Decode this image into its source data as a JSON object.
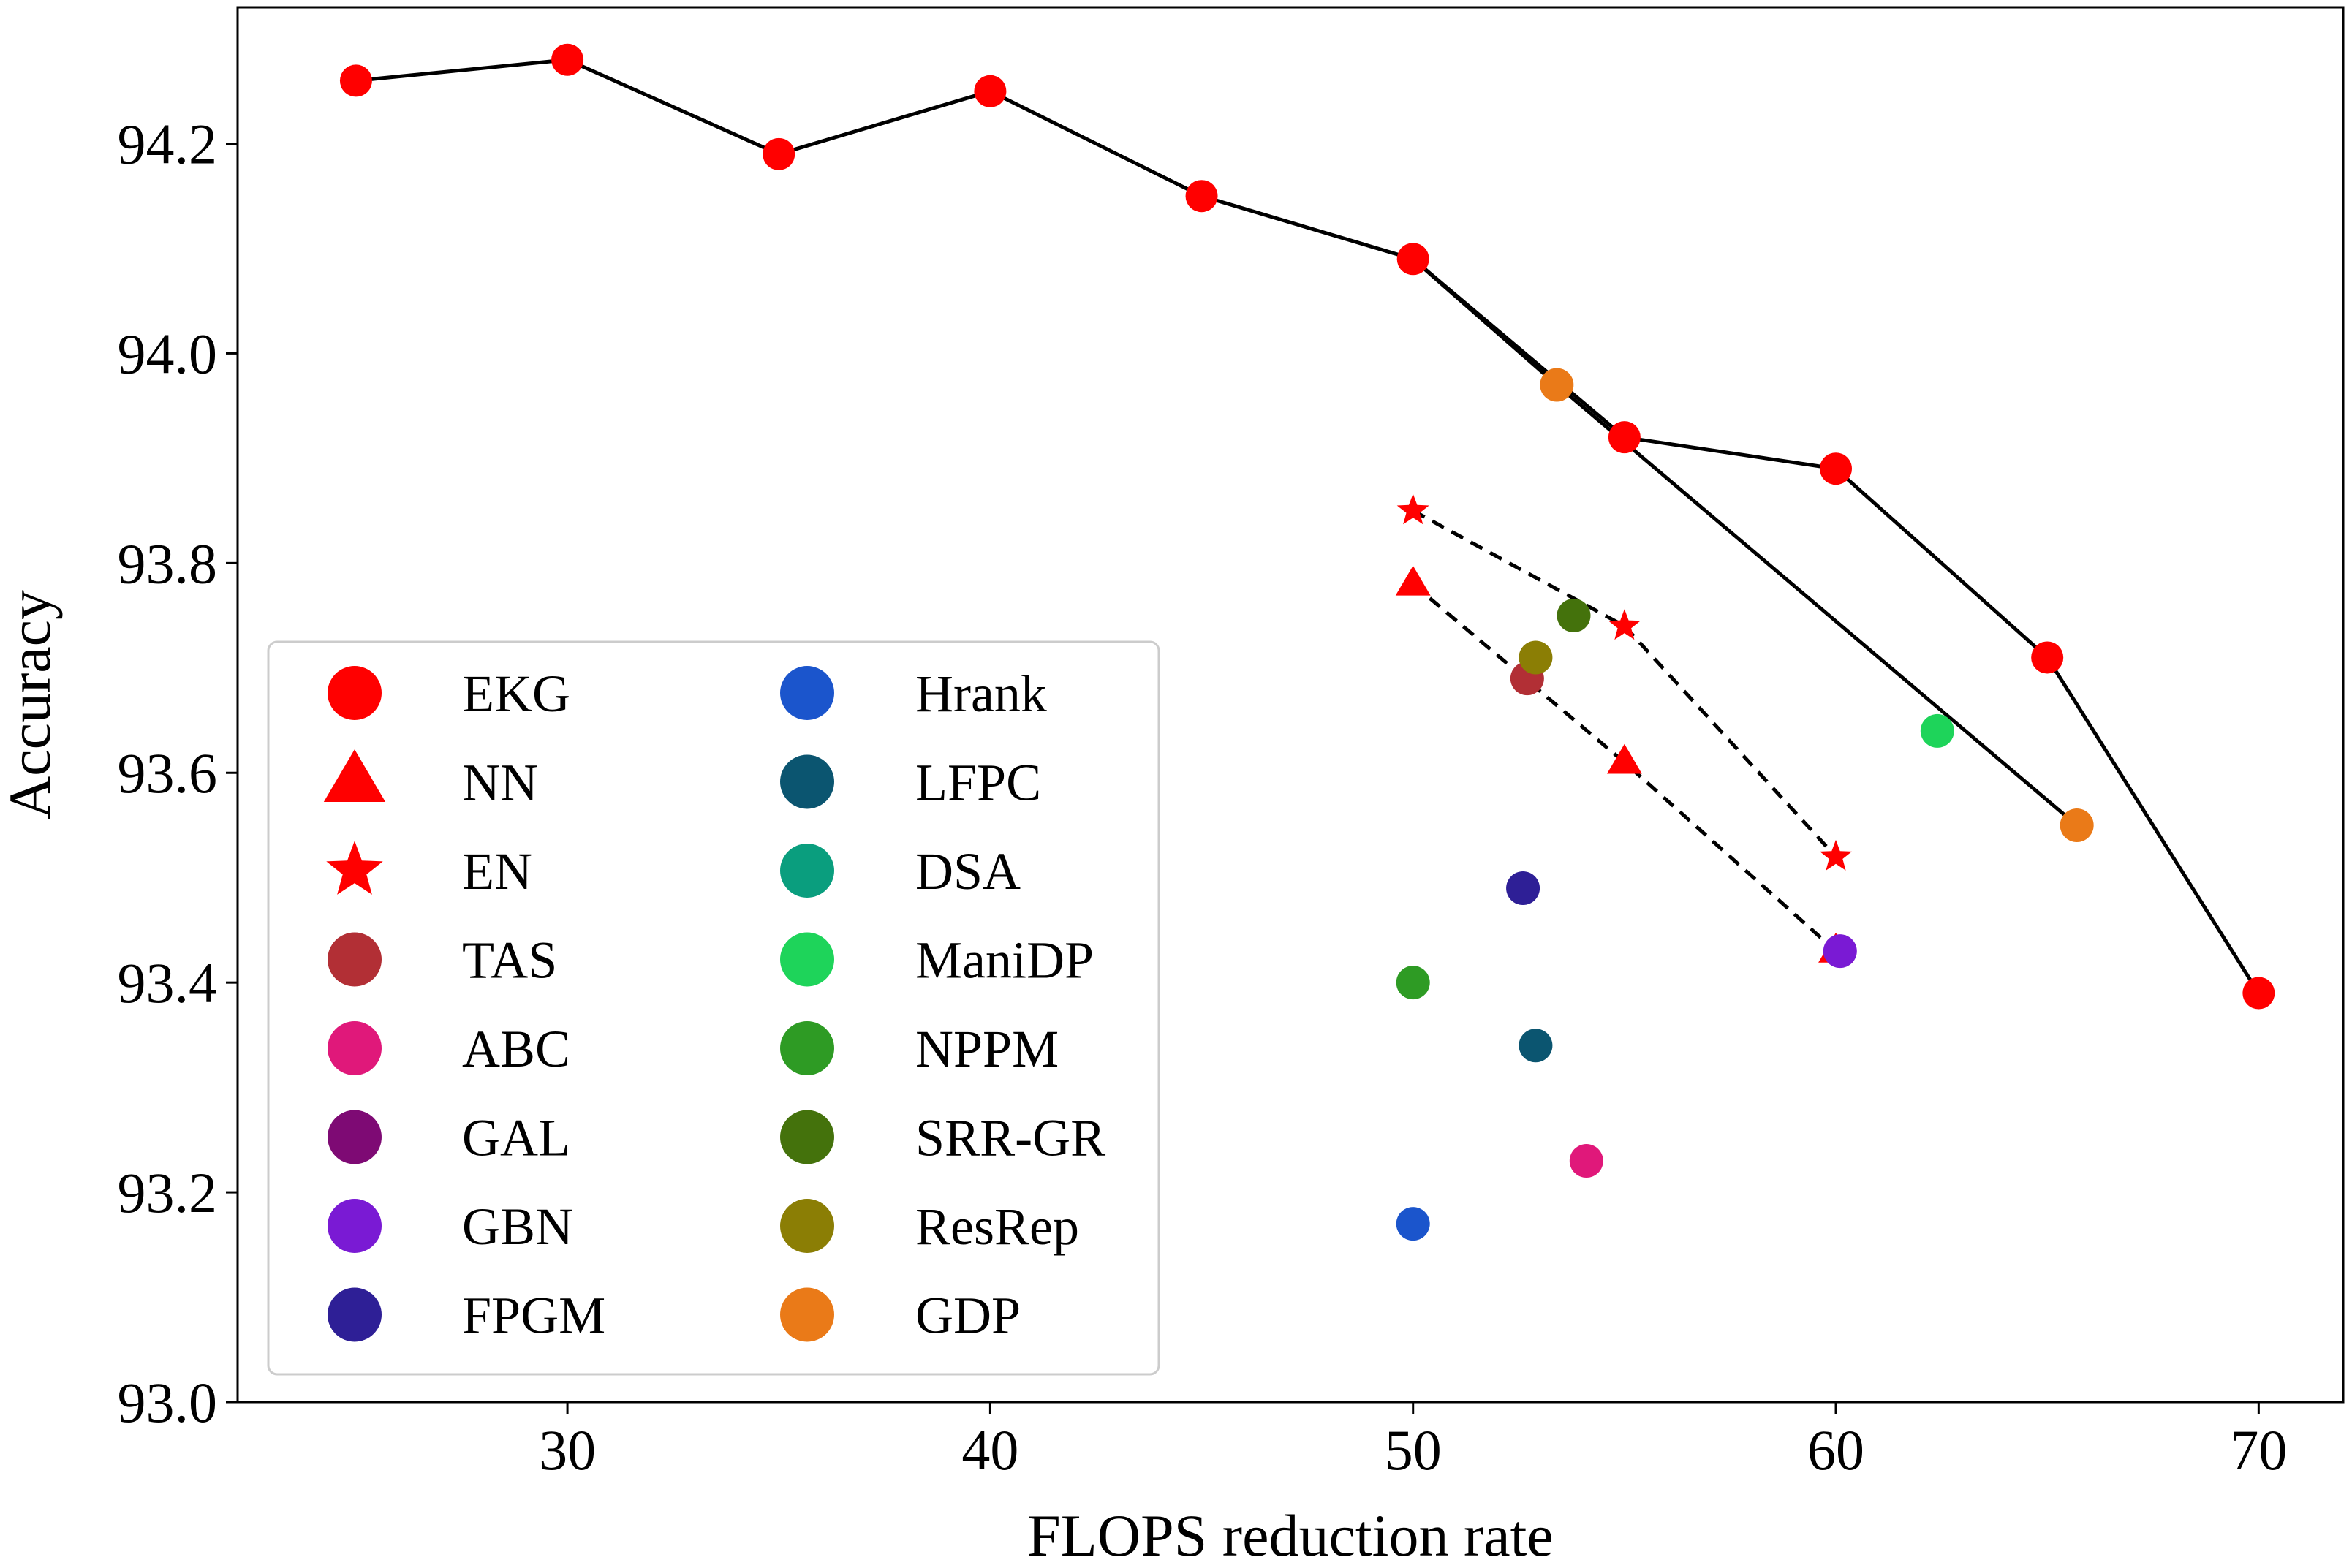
{
  "chart_data": {
    "type": "scatter",
    "title": "",
    "xlabel": "FLOPS reduction rate",
    "ylabel": "Accuracy",
    "xlim": [
      22.2,
      72.0
    ],
    "ylim": [
      93.0,
      94.33
    ],
    "xticks": [
      30,
      40,
      50,
      60,
      70
    ],
    "yticks": [
      93.0,
      93.2,
      93.4,
      93.6,
      93.8,
      94.0,
      94.2
    ],
    "xtick_labels": [
      "30",
      "40",
      "50",
      "60",
      "70"
    ],
    "ytick_labels": [
      "93.0",
      "93.2",
      "93.4",
      "93.6",
      "93.8",
      "94.0",
      "94.2"
    ],
    "grid": false,
    "legend_position": "lower-left",
    "lines": [
      {
        "name": "EKG",
        "style": "solid",
        "color": "#000000",
        "x": [
          25,
          30,
          35,
          40,
          45,
          50,
          55,
          60,
          65,
          70
        ],
        "y": [
          94.26,
          94.28,
          94.19,
          94.25,
          94.15,
          94.09,
          93.92,
          93.89,
          93.71,
          93.39
        ]
      },
      {
        "name": "GDP trend",
        "style": "solid",
        "color": "#000000",
        "x": [
          50,
          53.4,
          65.7
        ],
        "y": [
          94.09,
          93.97,
          93.55
        ]
      },
      {
        "name": "EN",
        "style": "dashed",
        "color": "#000000",
        "x": [
          50,
          55,
          60
        ],
        "y": [
          93.85,
          93.74,
          93.52
        ]
      },
      {
        "name": "NN",
        "style": "dashed",
        "color": "#000000",
        "x": [
          50,
          55,
          60
        ],
        "y": [
          93.78,
          93.61,
          93.43
        ]
      }
    ],
    "series": [
      {
        "name": "EKG",
        "marker": "circle",
        "color": "#ff0000",
        "x": [
          25,
          30,
          35,
          40,
          45,
          50,
          55,
          60,
          65,
          70
        ],
        "y": [
          94.26,
          94.28,
          94.19,
          94.25,
          94.15,
          94.09,
          93.92,
          93.89,
          93.71,
          93.39
        ]
      },
      {
        "name": "NN",
        "marker": "triangle",
        "color": "#ff0000",
        "x": [
          50,
          55,
          60
        ],
        "y": [
          93.78,
          93.61,
          93.43
        ]
      },
      {
        "name": "EN",
        "marker": "star",
        "color": "#ff0000",
        "x": [
          50,
          55,
          60
        ],
        "y": [
          93.85,
          93.74,
          93.52
        ]
      },
      {
        "name": "TAS",
        "marker": "circle",
        "color": "#b22f35",
        "x": [
          52.7
        ],
        "y": [
          93.69
        ]
      },
      {
        "name": "ABC",
        "marker": "circle",
        "color": "#e0187a",
        "x": [
          54.1
        ],
        "y": [
          93.23
        ]
      },
      {
        "name": "GAL",
        "marker": "circle",
        "color": "#7e0a74",
        "x": [],
        "y": []
      },
      {
        "name": "GBN",
        "marker": "circle",
        "color": "#7a1ad4",
        "x": [
          60.1
        ],
        "y": [
          93.43
        ]
      },
      {
        "name": "FPGM",
        "marker": "circle",
        "color": "#2e1f96",
        "x": [
          52.6
        ],
        "y": [
          93.49
        ]
      },
      {
        "name": "Hrank",
        "marker": "circle",
        "color": "#1b55cc",
        "x": [
          50
        ],
        "y": [
          93.17
        ]
      },
      {
        "name": "LFPC",
        "marker": "circle",
        "color": "#0b5570",
        "x": [
          52.9
        ],
        "y": [
          93.34
        ]
      },
      {
        "name": "DSA",
        "marker": "circle",
        "color": "#0a9e7e",
        "x": [],
        "y": []
      },
      {
        "name": "ManiDP",
        "marker": "circle",
        "color": "#1ed45a",
        "x": [
          62.4
        ],
        "y": [
          93.64
        ]
      },
      {
        "name": "NPPM",
        "marker": "circle",
        "color": "#2e9b24",
        "x": [
          50
        ],
        "y": [
          93.4
        ]
      },
      {
        "name": "SRR-GR",
        "marker": "circle",
        "color": "#44720c",
        "x": [
          53.8
        ],
        "y": [
          93.75
        ]
      },
      {
        "name": "ResRep",
        "marker": "circle",
        "color": "#8b7e05",
        "x": [
          52.9
        ],
        "y": [
          93.71
        ]
      },
      {
        "name": "GDP",
        "marker": "circle",
        "color": "#ea7a18",
        "x": [
          53.4,
          65.7
        ],
        "y": [
          93.97,
          93.55
        ]
      }
    ]
  }
}
